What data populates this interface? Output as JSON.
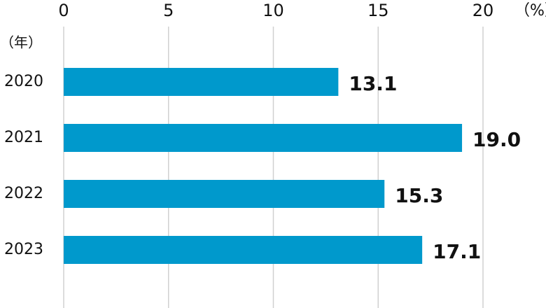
{
  "chart_data": {
    "type": "bar",
    "orientation": "horizontal",
    "x_label": "（%）",
    "y_label": "（年）",
    "categories": [
      "2020",
      "2021",
      "2022",
      "2023"
    ],
    "values": [
      13.1,
      19.0,
      15.3,
      17.1
    ],
    "value_labels": [
      "13.1",
      "19.0",
      "15.3",
      "17.1"
    ],
    "color": "#0099cc",
    "xlim": [
      0,
      20
    ],
    "xticks": [
      0,
      5,
      10,
      15,
      20
    ],
    "grid": true
  }
}
